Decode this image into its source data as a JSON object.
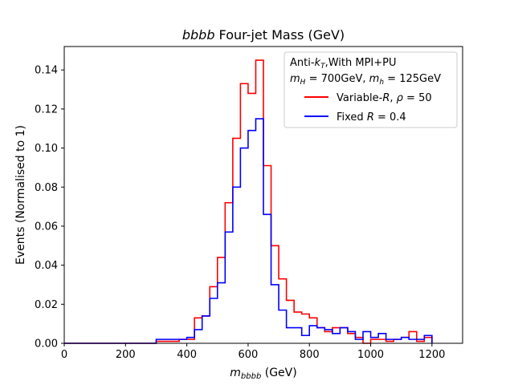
{
  "chart_data": {
    "type": "step",
    "title": "bbbb Four-jet Mass (GeV)",
    "title_parts": {
      "italic": "bbbb",
      "rest": " Four-jet Mass (GeV)"
    },
    "xlabel": "m_bbbb (GeV)",
    "xlabel_parts": {
      "symbol": "m",
      "subscript": "bbbb",
      "rest": " (GeV)"
    },
    "ylabel": "Events (Normalised to 1)",
    "xlim": [
      0,
      1300
    ],
    "ylim": [
      0,
      0.152
    ],
    "xticks": [
      0,
      200,
      400,
      600,
      800,
      1000,
      1200
    ],
    "xtick_labels": [
      "0",
      "200",
      "400",
      "600",
      "800",
      "1000",
      "1200"
    ],
    "yticks": [
      0.0,
      0.02,
      0.04,
      0.06,
      0.08,
      0.1,
      0.12,
      0.14
    ],
    "ytick_labels": [
      "0.00",
      "0.02",
      "0.04",
      "0.06",
      "0.08",
      "0.10",
      "0.12",
      "0.14"
    ],
    "grid": false,
    "legend_position": "top-right",
    "legend_header": [
      "Anti-k_T,With MPI+PU",
      "m_H = 700GeV, m_h = 125GeV"
    ],
    "bin_edges": [
      0,
      25,
      50,
      75,
      100,
      125,
      150,
      175,
      200,
      225,
      250,
      275,
      300,
      325,
      350,
      375,
      400,
      425,
      450,
      475,
      500,
      525,
      550,
      575,
      600,
      625,
      650,
      675,
      700,
      725,
      750,
      775,
      800,
      825,
      850,
      875,
      900,
      925,
      950,
      975,
      1000,
      1025,
      1050,
      1075,
      1100,
      1125,
      1150,
      1175,
      1200
    ],
    "series": [
      {
        "name": "Variable-R, ρ = 50",
        "color": "#ff0000",
        "values": [
          0,
          0,
          0,
          0,
          0,
          0,
          0,
          0,
          0,
          0,
          0,
          0,
          0.001,
          0.001,
          0.001,
          0.002,
          0.002,
          0.013,
          0.014,
          0.029,
          0.044,
          0.072,
          0.105,
          0.133,
          0.128,
          0.145,
          0.091,
          0.05,
          0.033,
          0.022,
          0.016,
          0.015,
          0.013,
          0.008,
          0.006,
          0.008,
          0.008,
          0.005,
          0.003,
          0.0,
          0.002,
          0.002,
          0.001,
          0.002,
          0.003,
          0.006,
          0.001,
          0.003
        ]
      },
      {
        "name": "Fixed R = 0.4",
        "color": "#0000ff",
        "values": [
          0,
          0,
          0,
          0,
          0,
          0,
          0,
          0,
          0,
          0,
          0,
          0,
          0.002,
          0.002,
          0.002,
          0.002,
          0.003,
          0.007,
          0.014,
          0.023,
          0.031,
          0.057,
          0.08,
          0.1,
          0.109,
          0.115,
          0.066,
          0.03,
          0.017,
          0.008,
          0.008,
          0.004,
          0.009,
          0.008,
          0.007,
          0.005,
          0.008,
          0.006,
          0.002,
          0.006,
          0.003,
          0.005,
          0.002,
          0.002,
          0.003,
          0.002,
          0.002,
          0.004
        ]
      }
    ]
  }
}
